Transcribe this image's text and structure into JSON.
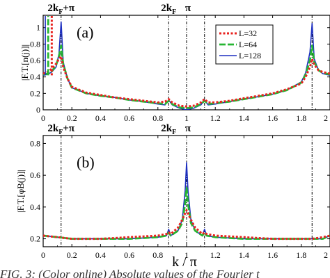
{
  "figure": {
    "xlabel": "k / π",
    "caption": "FIG. 3: (Color online) Absolute values of the Fourier t"
  },
  "colors": {
    "L32": "#e8231f",
    "L64": "#27b533",
    "L128": "#1d2fc0",
    "ref": "#000000"
  },
  "chart_data": [
    {
      "type": "line",
      "panel_label": "(a)",
      "ylabel": "|F.T.[n(j)]|",
      "xlim": [
        0,
        2
      ],
      "ylim": [
        0,
        1.15
      ],
      "x_ticks": [
        "0",
        "0.2",
        "0.4",
        "0.6",
        "0.8",
        "1",
        "1.2",
        "1.4",
        "1.6",
        "1.8",
        "2"
      ],
      "y_ticks": [
        "0",
        "0.2",
        "0.4",
        "0.6",
        "0.8",
        "1"
      ],
      "legend": {
        "position": "top-right",
        "entries": [
          "L=32",
          "L=64",
          "L=128"
        ]
      },
      "top_annotations": [
        {
          "text": "2k",
          "sub": "F",
          "suffix": "+π",
          "x": 0.125
        },
        {
          "text": "2k",
          "sub": "F",
          "suffix": "",
          "x": 0.875
        },
        {
          "text": "π",
          "sub": "",
          "suffix": "",
          "x": 1.0
        }
      ],
      "vlines": [
        0.125,
        0.875,
        1.0,
        1.125,
        1.875
      ],
      "series": [
        {
          "name": "L=128",
          "x": [
            0,
            0.03,
            0.06,
            0.09,
            0.11,
            0.125,
            0.14,
            0.17,
            0.2,
            0.3,
            0.4,
            0.5,
            0.6,
            0.7,
            0.8,
            0.85,
            0.875,
            0.9,
            0.95,
            1.0,
            1.05,
            1.1,
            1.125,
            1.15,
            1.2,
            1.3,
            1.4,
            1.5,
            1.6,
            1.7,
            1.8,
            1.83,
            1.86,
            1.875,
            1.89,
            1.92,
            1.95,
            2.0
          ],
          "y": [
            0.42,
            0.43,
            0.46,
            0.52,
            0.68,
            1.07,
            0.58,
            0.38,
            0.27,
            0.2,
            0.17,
            0.15,
            0.12,
            0.1,
            0.07,
            0.06,
            0.12,
            0.06,
            0.02,
            0.0,
            0.02,
            0.06,
            0.12,
            0.06,
            0.07,
            0.1,
            0.13,
            0.16,
            0.19,
            0.24,
            0.34,
            0.45,
            0.7,
            1.05,
            0.62,
            0.48,
            0.44,
            0.42
          ]
        },
        {
          "name": "L=64",
          "x": [
            0,
            0.03,
            0.06,
            0.09,
            0.11,
            0.125,
            0.14,
            0.17,
            0.2,
            0.3,
            0.4,
            0.5,
            0.6,
            0.7,
            0.8,
            0.85,
            0.875,
            0.9,
            0.95,
            1.0,
            1.05,
            1.1,
            1.125,
            1.15,
            1.2,
            1.3,
            1.4,
            1.5,
            1.6,
            1.7,
            1.8,
            1.83,
            1.86,
            1.875,
            1.89,
            1.92,
            1.95,
            2.0
          ],
          "y": [
            0.43,
            0.44,
            0.47,
            0.54,
            0.65,
            0.78,
            0.56,
            0.38,
            0.27,
            0.2,
            0.17,
            0.15,
            0.12,
            0.1,
            0.08,
            0.07,
            0.11,
            0.07,
            0.03,
            0.02,
            0.03,
            0.07,
            0.11,
            0.07,
            0.08,
            0.1,
            0.13,
            0.16,
            0.19,
            0.24,
            0.33,
            0.43,
            0.6,
            0.78,
            0.58,
            0.48,
            0.45,
            0.43
          ]
        },
        {
          "name": "L=32",
          "x": [
            0,
            0.03,
            0.06,
            0.09,
            0.11,
            0.125,
            0.14,
            0.17,
            0.2,
            0.3,
            0.4,
            0.5,
            0.6,
            0.7,
            0.8,
            0.85,
            0.875,
            0.9,
            0.95,
            1.0,
            1.05,
            1.1,
            1.125,
            1.15,
            1.2,
            1.3,
            1.4,
            1.5,
            1.6,
            1.7,
            1.8,
            1.83,
            1.86,
            1.875,
            1.89,
            1.92,
            1.95,
            2.0
          ],
          "y": [
            0.44,
            0.46,
            0.5,
            0.56,
            0.62,
            0.65,
            0.52,
            0.38,
            0.28,
            0.21,
            0.18,
            0.15,
            0.13,
            0.11,
            0.09,
            0.1,
            0.13,
            0.09,
            0.05,
            0.04,
            0.05,
            0.09,
            0.13,
            0.09,
            0.09,
            0.11,
            0.14,
            0.17,
            0.2,
            0.25,
            0.32,
            0.4,
            0.52,
            0.62,
            0.55,
            0.48,
            0.46,
            0.44
          ]
        }
      ],
      "edge_spikes": [
        {
          "series": "L=128",
          "x": 0.015
        },
        {
          "series": "L=64",
          "x": 0.035
        },
        {
          "series": "L=32",
          "x": 0.06
        }
      ]
    },
    {
      "type": "line",
      "panel_label": "(b)",
      "ylabel": "|F.T.[φB(j)]|",
      "xlim": [
        0,
        2
      ],
      "ylim": [
        0.15,
        0.85
      ],
      "x_ticks": [
        "0",
        "0.2",
        "0.4",
        "0.6",
        "0.8",
        "1",
        "1.2",
        "1.4",
        "1.6",
        "1.8",
        "2"
      ],
      "y_ticks": [
        "0.2",
        "0.4",
        "0.6",
        "0.8"
      ],
      "top_annotations": [
        {
          "text": "2k",
          "sub": "F",
          "suffix": "+π",
          "x": 0.125
        },
        {
          "text": "2k",
          "sub": "F",
          "suffix": "",
          "x": 0.875
        },
        {
          "text": "π",
          "sub": "",
          "suffix": "",
          "x": 1.0
        }
      ],
      "vlines": [
        0.125,
        0.875,
        1.0,
        1.125,
        1.875
      ],
      "series": [
        {
          "name": "L=128",
          "x": [
            0,
            0.1,
            0.2,
            0.4,
            0.6,
            0.8,
            0.86,
            0.875,
            0.89,
            0.94,
            0.97,
            0.99,
            1.0,
            1.01,
            1.03,
            1.06,
            1.11,
            1.125,
            1.14,
            1.2,
            1.4,
            1.6,
            1.8,
            1.875,
            1.95,
            2.0
          ],
          "y": [
            0.22,
            0.21,
            0.2,
            0.2,
            0.2,
            0.21,
            0.22,
            0.26,
            0.22,
            0.25,
            0.32,
            0.5,
            0.68,
            0.5,
            0.32,
            0.25,
            0.22,
            0.26,
            0.22,
            0.21,
            0.2,
            0.2,
            0.2,
            0.2,
            0.2,
            0.22
          ]
        },
        {
          "name": "L=64",
          "x": [
            0,
            0.1,
            0.2,
            0.4,
            0.6,
            0.8,
            0.86,
            0.875,
            0.89,
            0.94,
            0.97,
            0.99,
            1.0,
            1.01,
            1.03,
            1.06,
            1.11,
            1.125,
            1.14,
            1.2,
            1.4,
            1.6,
            1.8,
            1.875,
            1.95,
            2.0
          ],
          "y": [
            0.22,
            0.21,
            0.2,
            0.2,
            0.2,
            0.21,
            0.22,
            0.24,
            0.22,
            0.25,
            0.3,
            0.42,
            0.52,
            0.42,
            0.3,
            0.25,
            0.22,
            0.24,
            0.22,
            0.21,
            0.2,
            0.2,
            0.2,
            0.2,
            0.2,
            0.22
          ]
        },
        {
          "name": "L=32",
          "x": [
            0,
            0.1,
            0.2,
            0.4,
            0.6,
            0.8,
            0.86,
            0.875,
            0.89,
            0.94,
            0.97,
            0.99,
            1.0,
            1.01,
            1.03,
            1.06,
            1.11,
            1.125,
            1.14,
            1.2,
            1.4,
            1.6,
            1.8,
            1.875,
            1.95,
            2.0
          ],
          "y": [
            0.22,
            0.21,
            0.2,
            0.2,
            0.21,
            0.22,
            0.23,
            0.24,
            0.23,
            0.27,
            0.32,
            0.36,
            0.38,
            0.36,
            0.32,
            0.27,
            0.23,
            0.24,
            0.23,
            0.22,
            0.21,
            0.2,
            0.2,
            0.2,
            0.21,
            0.22
          ]
        }
      ]
    }
  ]
}
